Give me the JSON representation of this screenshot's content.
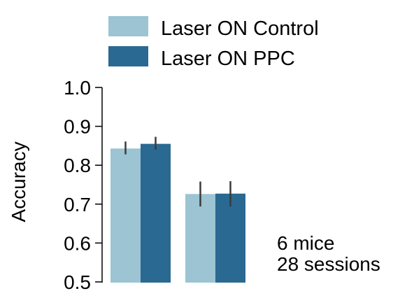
{
  "chart_data": {
    "type": "bar",
    "title": "",
    "xlabel": "",
    "ylabel": "Accuracy",
    "ylim": [
      0.5,
      1.0
    ],
    "yticks": [
      "0.5",
      "0.6",
      "0.7",
      "0.8",
      "0.9",
      "1.0"
    ],
    "legend_position": "top",
    "groups": 2,
    "series": [
      {
        "name": "Laser ON Control",
        "color": "#9cc4d3",
        "values": [
          0.843,
          0.726
        ],
        "error_low": [
          0.828,
          0.694
        ],
        "error_high": [
          0.861,
          0.758
        ]
      },
      {
        "name": "Laser ON PPC",
        "color": "#2a6992",
        "values": [
          0.855,
          0.727
        ],
        "error_low": [
          0.84,
          0.694
        ],
        "error_high": [
          0.873,
          0.759
        ]
      }
    ],
    "annotation": {
      "line1": "6 mice",
      "line2": "28 sessions"
    }
  }
}
